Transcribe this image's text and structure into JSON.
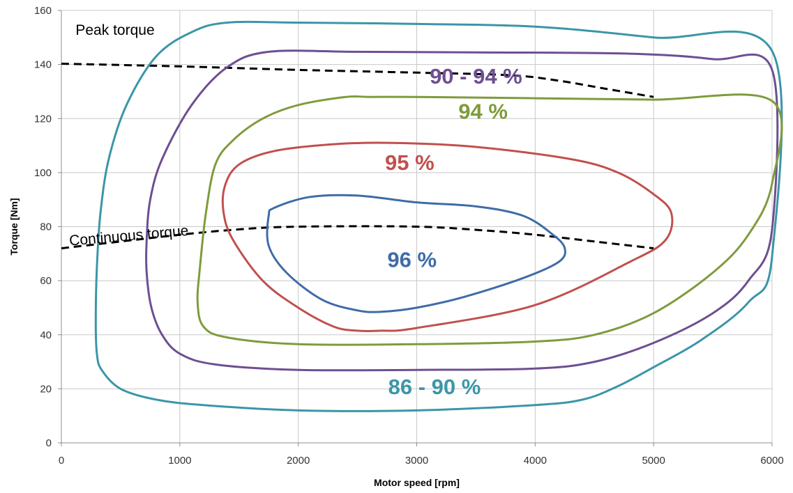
{
  "chart_data": {
    "type": "line",
    "title": "",
    "xlabel": "Motor speed [rpm]",
    "ylabel": "Torque [Nm]",
    "xlim": [
      0,
      6000
    ],
    "ylim": [
      0,
      160
    ],
    "xticks": [
      0,
      1000,
      2000,
      3000,
      4000,
      5000,
      6000
    ],
    "yticks": [
      0,
      20,
      40,
      60,
      80,
      100,
      120,
      140,
      160
    ],
    "grid": true,
    "contours": [
      {
        "label": "86 - 90 %",
        "color": "#3a96a8",
        "label_at": [
          3150,
          18
        ],
        "points": [
          [
            6000,
            145
          ],
          [
            5000,
            150
          ],
          [
            4000,
            154
          ],
          [
            3000,
            155
          ],
          [
            2000,
            155.5
          ],
          [
            1400,
            155.5
          ],
          [
            1100,
            152
          ],
          [
            800,
            143
          ],
          [
            550,
            125
          ],
          [
            400,
            105
          ],
          [
            330,
            85
          ],
          [
            300,
            65
          ],
          [
            290,
            45
          ],
          [
            300,
            33
          ],
          [
            340,
            27
          ],
          [
            500,
            20
          ],
          [
            800,
            16
          ],
          [
            1200,
            14
          ],
          [
            2000,
            12
          ],
          [
            3000,
            12
          ],
          [
            4000,
            14
          ],
          [
            4400,
            16
          ],
          [
            4700,
            21
          ],
          [
            5000,
            28
          ],
          [
            5400,
            38
          ],
          [
            5800,
            52
          ],
          [
            6000,
            69
          ],
          [
            6000,
            145
          ]
        ]
      },
      {
        "label": "90 - 94 %",
        "color": "#6d4f91",
        "label_at": [
          3500,
          133
        ],
        "points": [
          [
            6000,
            138
          ],
          [
            5500,
            142
          ],
          [
            4800,
            144
          ],
          [
            3500,
            144.5
          ],
          [
            2500,
            144.7
          ],
          [
            1750,
            144.7
          ],
          [
            1400,
            139
          ],
          [
            1100,
            125
          ],
          [
            850,
            105
          ],
          [
            750,
            90
          ],
          [
            720,
            75
          ],
          [
            720,
            63
          ],
          [
            760,
            50
          ],
          [
            850,
            40
          ],
          [
            1000,
            33
          ],
          [
            1300,
            29
          ],
          [
            2000,
            27
          ],
          [
            3000,
            27
          ],
          [
            4000,
            27.5
          ],
          [
            4500,
            30
          ],
          [
            5000,
            37
          ],
          [
            5500,
            48
          ],
          [
            5800,
            60
          ],
          [
            6000,
            79
          ],
          [
            6000,
            138
          ]
        ]
      },
      {
        "label": "94 %",
        "color": "#7f9b3c",
        "label_at": [
          3560,
          120
        ],
        "points": [
          [
            6000,
            126.5
          ],
          [
            5000,
            127
          ],
          [
            4000,
            127.5
          ],
          [
            3000,
            128
          ],
          [
            2600,
            128
          ],
          [
            2400,
            128
          ],
          [
            2000,
            125
          ],
          [
            1700,
            120
          ],
          [
            1450,
            112
          ],
          [
            1300,
            103
          ],
          [
            1220,
            85
          ],
          [
            1170,
            65
          ],
          [
            1150,
            52
          ],
          [
            1200,
            43
          ],
          [
            1400,
            39
          ],
          [
            2000,
            36.5
          ],
          [
            3000,
            36.5
          ],
          [
            4000,
            37.5
          ],
          [
            4500,
            40
          ],
          [
            5000,
            48
          ],
          [
            5500,
            63
          ],
          [
            5800,
            77
          ],
          [
            6000,
            96
          ],
          [
            6000,
            126.5
          ]
        ]
      },
      {
        "label": "95 %",
        "color": "#c0504d",
        "label_at": [
          2940,
          101
        ],
        "points": [
          [
            1500,
            103
          ],
          [
            1800,
            108
          ],
          [
            2300,
            110.5
          ],
          [
            2800,
            111
          ],
          [
            3500,
            109.5
          ],
          [
            4300,
            105
          ],
          [
            4700,
            100
          ],
          [
            5000,
            92
          ],
          [
            5150,
            85
          ],
          [
            5100,
            75
          ],
          [
            4800,
            67
          ],
          [
            4000,
            51
          ],
          [
            3000,
            42.5
          ],
          [
            2700,
            41.5
          ],
          [
            2500,
            41.5
          ],
          [
            2300,
            43
          ],
          [
            2000,
            50
          ],
          [
            1700,
            60
          ],
          [
            1450,
            75
          ],
          [
            1370,
            85
          ],
          [
            1380,
            95
          ],
          [
            1500,
            103
          ]
        ]
      },
      {
        "label": "96 %",
        "color": "#3f6ba8",
        "label_at": [
          2960,
          65
        ],
        "points": [
          [
            1800,
            87
          ],
          [
            2100,
            91
          ],
          [
            2500,
            91.5
          ],
          [
            3000,
            89
          ],
          [
            3500,
            87.5
          ],
          [
            3900,
            84
          ],
          [
            4150,
            77
          ],
          [
            4250,
            72
          ],
          [
            4200,
            67
          ],
          [
            3900,
            61
          ],
          [
            3400,
            54
          ],
          [
            3000,
            50
          ],
          [
            2700,
            48.5
          ],
          [
            2500,
            49
          ],
          [
            2200,
            53
          ],
          [
            1900,
            63
          ],
          [
            1750,
            73
          ],
          [
            1750,
            84
          ],
          [
            1800,
            87
          ]
        ]
      }
    ],
    "torque_lines": [
      {
        "name": "Peak torque",
        "label_at": [
          120,
          151
        ],
        "points": [
          [
            0,
            140.3
          ],
          [
            1000,
            139.3
          ],
          [
            2000,
            138
          ],
          [
            3000,
            137
          ],
          [
            3800,
            136
          ],
          [
            4200,
            134
          ],
          [
            4600,
            131
          ],
          [
            5000,
            128
          ]
        ]
      },
      {
        "name": "Continuous torque",
        "label_at": [
          70,
          73
        ],
        "points": [
          [
            0,
            72
          ],
          [
            500,
            74.5
          ],
          [
            1000,
            77
          ],
          [
            1500,
            79
          ],
          [
            2000,
            80
          ],
          [
            3000,
            80
          ],
          [
            3600,
            78.5
          ],
          [
            4000,
            77
          ],
          [
            4500,
            74.5
          ],
          [
            5000,
            72
          ]
        ]
      }
    ]
  }
}
